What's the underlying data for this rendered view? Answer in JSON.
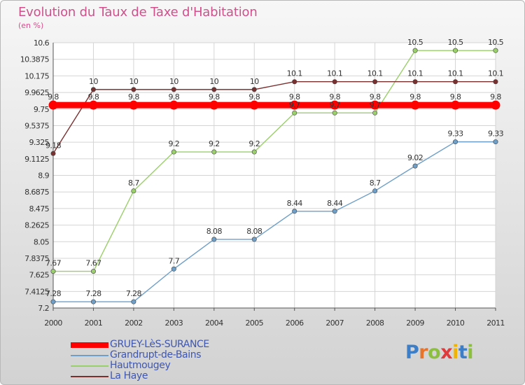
{
  "header": {
    "title": "Evolution du Taux de Taxe d'Habitation",
    "unit": "(en %)"
  },
  "brand": {
    "logo_text": "Proxiti",
    "letter_colors": [
      "#3d7ec8",
      "#e8732a",
      "#8cbf3f",
      "#e03a3a",
      "#f0b400",
      "#3d7ec8",
      "#8cbf3f"
    ]
  },
  "chart_data": {
    "type": "line",
    "x": [
      "2000",
      "2001",
      "2002",
      "2003",
      "2004",
      "2005",
      "2006",
      "2007",
      "2008",
      "2009",
      "2010",
      "2011"
    ],
    "ylim": [
      7.2,
      10.6
    ],
    "yticks": [
      "10.6",
      "10.3875",
      "10.175",
      "9.9625",
      "9.75",
      "9.5375",
      "9.325",
      "9.1125",
      "8.9",
      "8.6875",
      "8.475",
      "8.2625",
      "8.05",
      "7.8375",
      "7.625",
      "7.4125",
      "7.2"
    ],
    "grid": true,
    "legend_position": "bottom-left",
    "series": [
      {
        "name": "GRUEY-LèS-SURANCE",
        "color": "#ff0000",
        "values": [
          9.8,
          9.8,
          9.8,
          9.8,
          9.8,
          9.8,
          9.8,
          9.8,
          9.8,
          9.8,
          9.8,
          9.8
        ],
        "labels": [
          "9.8",
          "9.8",
          "9.8",
          "9.8",
          "9.8",
          "9.8",
          "9.8",
          "9.8",
          "9.8",
          "9.8",
          "9.8",
          "9.8"
        ]
      },
      {
        "name": "Grandrupt-de-Bains",
        "color": "#6e9fc8",
        "values": [
          7.28,
          7.28,
          7.28,
          7.7,
          8.08,
          8.08,
          8.44,
          8.44,
          8.7,
          9.02,
          9.33,
          9.33
        ],
        "labels": [
          "7.28",
          "7.28",
          "7.28",
          "7.7",
          "8.08",
          "8.08",
          "8.44",
          "8.44",
          "8.7",
          "9.02",
          "9.33",
          "9.33"
        ]
      },
      {
        "name": "Hautmougey",
        "color": "#9ad06a",
        "values": [
          7.67,
          7.67,
          8.7,
          9.2,
          9.2,
          9.2,
          9.7,
          9.7,
          9.7,
          10.5,
          10.5,
          10.5
        ],
        "labels": [
          "7.67",
          "7.67",
          "8.7",
          "9.2",
          "9.2",
          "9.2",
          "9.7",
          "9.7",
          "9.7",
          "10.5",
          "10.5",
          "10.5"
        ]
      },
      {
        "name": "La Haye",
        "color": "#7b3030",
        "values": [
          9.18,
          10,
          10,
          10,
          10,
          10,
          10.1,
          10.1,
          10.1,
          10.1,
          10.1,
          10.1
        ],
        "labels": [
          "9.18",
          "10",
          "10",
          "10",
          "10",
          "10",
          "10.1",
          "10.1",
          "10.1",
          "10.1",
          "10.1",
          "10.1"
        ]
      }
    ]
  }
}
